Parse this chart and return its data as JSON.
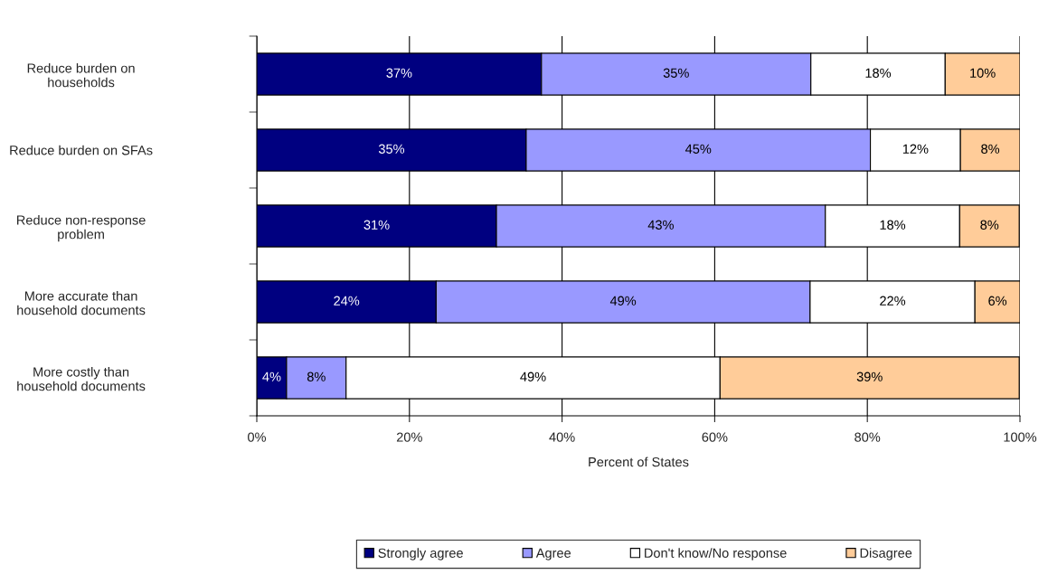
{
  "chart_data": {
    "type": "bar",
    "orientation": "horizontal",
    "stacked": true,
    "categories": [
      "Reduce burden on households",
      "Reduce burden on SFAs",
      "Reduce non-response problem",
      "More accurate than household documents",
      "More costly than household documents"
    ],
    "series": [
      {
        "name": "Strongly agree",
        "color": "#000080",
        "values": [
          37.3,
          35.3,
          31.4,
          23.5,
          3.9
        ],
        "value_labels": [
          "37%",
          "35%",
          "31%",
          "24%",
          "4%"
        ]
      },
      {
        "name": "Agree",
        "color": "#9999ff",
        "values": [
          35.3,
          45.1,
          43.1,
          49.0,
          7.8
        ],
        "value_labels": [
          "35%",
          "45%",
          "43%",
          "49%",
          "8%"
        ]
      },
      {
        "name": "Don't know/No response",
        "color": "#ffffff",
        "values": [
          17.6,
          11.8,
          17.6,
          21.6,
          49.0
        ],
        "value_labels": [
          "18%",
          "12%",
          "18%",
          "22%",
          "49%"
        ]
      },
      {
        "name": "Disagree",
        "color": "#ffcc99",
        "values": [
          9.8,
          7.8,
          7.8,
          5.9,
          39.2
        ],
        "value_labels": [
          "10%",
          "8%",
          "8%",
          "6%",
          "39%"
        ]
      }
    ],
    "xlabel": "Percent of States",
    "xlim": [
      0,
      100
    ],
    "xticks": [
      {
        "value": 0,
        "label": "0%"
      },
      {
        "value": 20,
        "label": "20%"
      },
      {
        "value": 40,
        "label": "40%"
      },
      {
        "value": 60,
        "label": "60%"
      },
      {
        "value": 80,
        "label": "80%"
      },
      {
        "value": 100,
        "label": "100%"
      }
    ],
    "grid": "x",
    "legend": "bottom"
  }
}
